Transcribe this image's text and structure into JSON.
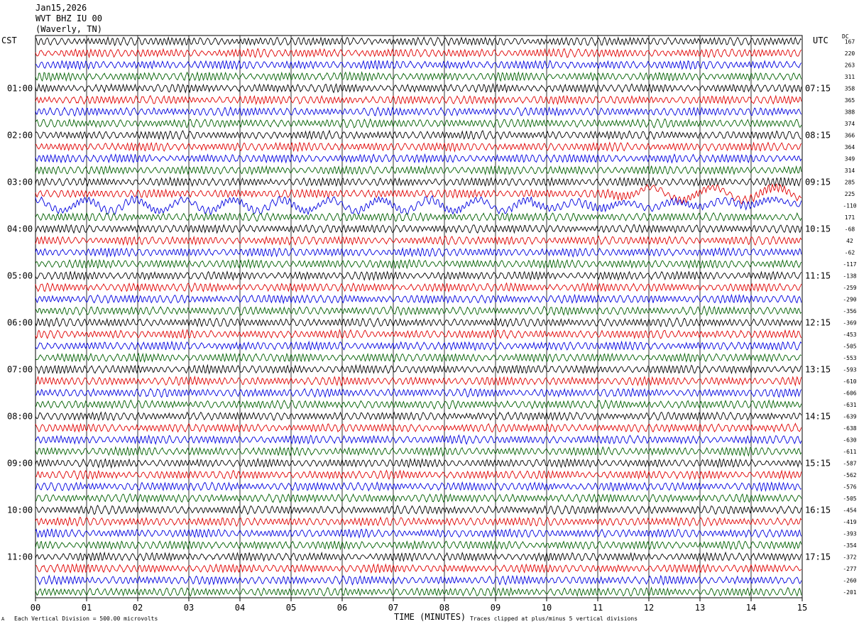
{
  "header": {
    "date": "Jan15,2026",
    "station": "WVT BHZ IU 00",
    "location": "(Waverly, TN)"
  },
  "left_label": "CST",
  "right_label": "UTC",
  "dc_label": "DC",
  "footer": {
    "vertical_division": "Each Vertical Division =  500.00 microvolts",
    "clip_note": "Traces clipped at plus/minus 5 vertical divisions",
    "corner_mark": "A"
  },
  "colors": {
    "cycle": [
      "#000000",
      "#e00000",
      "#0000e0",
      "#006000"
    ],
    "grid": "#000000",
    "background": "#ffffff"
  },
  "chart_data": {
    "type": "line",
    "title": "",
    "xlabel": "TIME (MINUTES)",
    "ylabel": "",
    "xlim": [
      0,
      15
    ],
    "x_ticks": [
      "00",
      "01",
      "02",
      "03",
      "04",
      "05",
      "06",
      "07",
      "08",
      "09",
      "10",
      "11",
      "12",
      "13",
      "14",
      "15"
    ],
    "trace_interval_minutes": 15,
    "trace_count": 48,
    "left_time_labels": [
      "01:00",
      "02:00",
      "03:00",
      "04:00",
      "05:00",
      "06:00",
      "07:00",
      "08:00",
      "09:00",
      "10:00",
      "11:00"
    ],
    "right_time_labels": [
      "07:15",
      "08:15",
      "09:15",
      "10:15",
      "11:15",
      "12:15",
      "13:15",
      "14:15",
      "15:15",
      "16:15",
      "17:15"
    ],
    "dc_offsets": [
      167,
      220,
      263,
      311,
      358,
      365,
      388,
      374,
      366,
      364,
      349,
      314,
      285,
      225,
      -110,
      171,
      -68,
      42,
      -62,
      -117,
      -138,
      -259,
      -290,
      -356,
      -369,
      -453,
      -505,
      -553,
      -593,
      -610,
      -606,
      -631,
      -639,
      -638,
      -630,
      -611,
      -587,
      -562,
      -576,
      -505,
      -454,
      -419,
      -393,
      -354,
      -372,
      -277,
      -260,
      -201
    ],
    "series": [
      {
        "values": [],
        "note": ""
      }
    ]
  }
}
